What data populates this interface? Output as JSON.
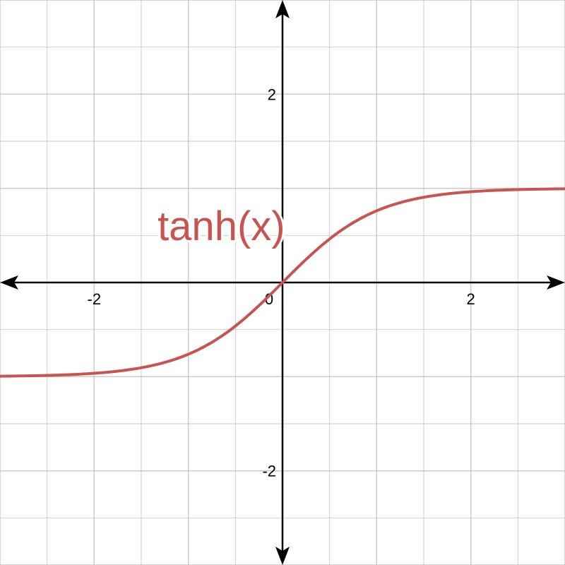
{
  "chart_data": {
    "type": "line",
    "title": "",
    "xlabel": "",
    "ylabel": "",
    "xlim": [
      -3,
      3
    ],
    "ylim": [
      -3,
      3
    ],
    "grid": true,
    "grid_step": 0.5,
    "x_ticks": [
      {
        "value": -2,
        "label": "-2"
      },
      {
        "value": 0,
        "label": "0"
      },
      {
        "value": 2,
        "label": "2"
      }
    ],
    "y_ticks": [
      {
        "value": 2,
        "label": "2"
      },
      {
        "value": -2,
        "label": "-2"
      }
    ],
    "series": [
      {
        "name": "tanh(x)",
        "function": "tanh",
        "color": "#c75450",
        "x": [
          -3,
          -2.5,
          -2,
          -1.5,
          -1,
          -0.75,
          -0.5,
          -0.25,
          0,
          0.25,
          0.5,
          0.75,
          1,
          1.5,
          2,
          2.5,
          3
        ],
        "y": [
          -0.995,
          -0.987,
          -0.964,
          -0.905,
          -0.762,
          -0.635,
          -0.462,
          -0.245,
          0,
          0.245,
          0.462,
          0.635,
          0.762,
          0.905,
          0.964,
          0.987,
          0.995
        ]
      }
    ],
    "annotations": [
      {
        "text": "tanh(x)",
        "x": -0.65,
        "y": 0.6,
        "color": "#c75450"
      }
    ],
    "colors": {
      "grid": "#c8c8c8",
      "axis": "#000000",
      "curve": "#c75450"
    }
  }
}
